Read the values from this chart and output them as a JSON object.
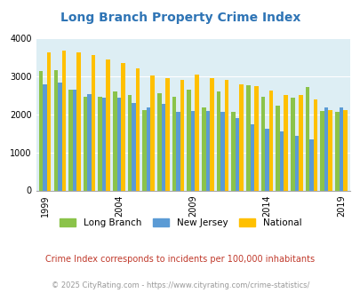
{
  "title": "Long Branch Property Crime Index",
  "years": [
    1999,
    2000,
    2001,
    2002,
    2003,
    2004,
    2005,
    2006,
    2007,
    2008,
    2009,
    2010,
    2011,
    2012,
    2013,
    2014,
    2015,
    2016,
    2017,
    2018,
    2019
  ],
  "long_branch": [
    3130,
    3160,
    2650,
    2470,
    2450,
    2600,
    2500,
    2120,
    2560,
    2450,
    2650,
    2170,
    2600,
    2060,
    2760,
    2460,
    2220,
    2440,
    2720,
    2080,
    2060
  ],
  "new_jersey": [
    2780,
    2840,
    2640,
    2540,
    2440,
    2430,
    2300,
    2190,
    2280,
    2070,
    2080,
    2090,
    2070,
    1890,
    1730,
    1610,
    1560,
    1440,
    1350,
    2170,
    2180
  ],
  "national": [
    3630,
    3660,
    3620,
    3550,
    3440,
    3350,
    3210,
    3030,
    2960,
    2900,
    3050,
    2950,
    2910,
    2780,
    2750,
    2620,
    2510,
    2500,
    2380,
    2100,
    2100
  ],
  "long_branch_color": "#8bc34a",
  "new_jersey_color": "#5b9bd5",
  "national_color": "#ffc000",
  "bg_color": "#ddeef4",
  "ylim": [
    0,
    4000
  ],
  "yticks": [
    0,
    1000,
    2000,
    3000,
    4000
  ],
  "xlabel_ticks": [
    1999,
    2004,
    2009,
    2014,
    2019
  ],
  "subtitle": "Crime Index corresponds to incidents per 100,000 inhabitants",
  "footer": "© 2025 CityRating.com - https://www.cityrating.com/crime-statistics/",
  "title_color": "#2e74b5",
  "subtitle_color": "#c0392b",
  "footer_color": "#999999",
  "bar_width": 0.27
}
